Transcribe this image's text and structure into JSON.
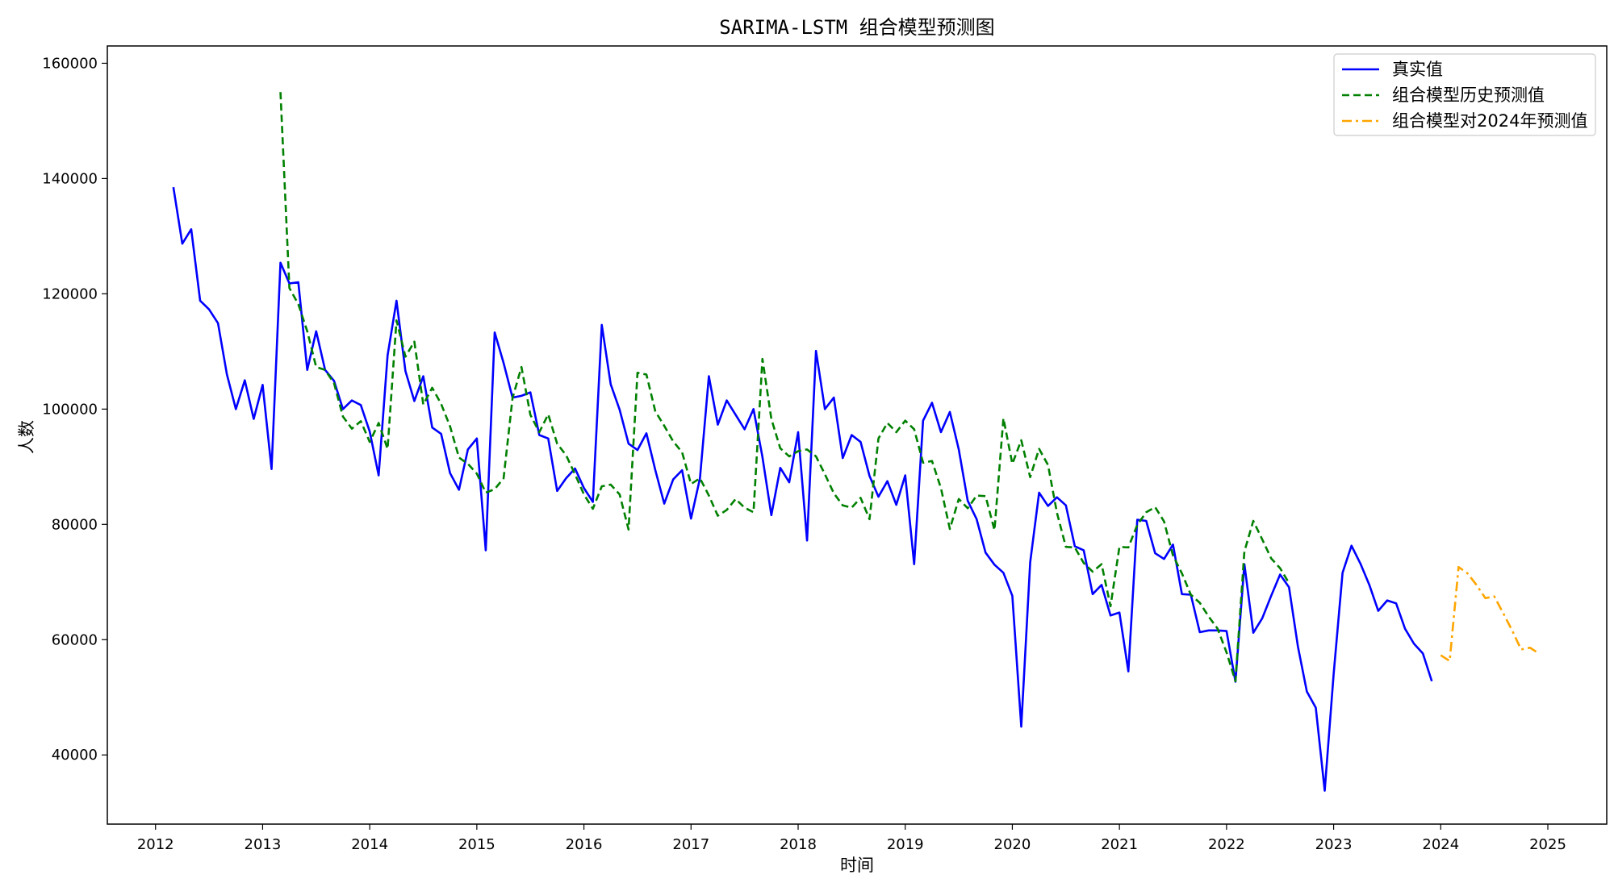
{
  "chart_data": {
    "type": "line",
    "title": "SARIMA-LSTM 组合模型预测图",
    "xlabel": "时间",
    "ylabel": "人数",
    "xlim": [
      2011.55,
      2025.55
    ],
    "ylim": [
      28000,
      163000
    ],
    "grid": false,
    "legend_position": "top-right",
    "x_ticks": [
      2012,
      2013,
      2014,
      2015,
      2016,
      2017,
      2018,
      2019,
      2020,
      2021,
      2022,
      2023,
      2024,
      2025
    ],
    "x_tick_labels": [
      "2012",
      "2013",
      "2014",
      "2015",
      "2016",
      "2017",
      "2018",
      "2019",
      "2020",
      "2021",
      "2022",
      "2023",
      "2024",
      "2025"
    ],
    "y_ticks": [
      40000,
      60000,
      80000,
      100000,
      120000,
      140000,
      160000
    ],
    "y_tick_labels": [
      "40000",
      "60000",
      "80000",
      "100000",
      "120000",
      "140000",
      "160000"
    ],
    "series": [
      {
        "name": "真实值",
        "color": "#0000ff",
        "dash": "solid",
        "x_start": "2012-03",
        "values": [
          138500,
          128700,
          131200,
          118800,
          117300,
          114900,
          106000,
          100000,
          105000,
          98300,
          104200,
          89600,
          125400,
          121800,
          122000,
          106800,
          113500,
          106800,
          104900,
          100000,
          101500,
          100700,
          96100,
          88500,
          109300,
          118800,
          106600,
          101400,
          105700,
          96800,
          95700,
          88900,
          86000,
          93000,
          94900,
          75500,
          113300,
          108000,
          102000,
          102300,
          102900,
          95500,
          94900,
          85800,
          88000,
          89700,
          86300,
          83900,
          114600,
          104300,
          99900,
          94000,
          92900,
          95800,
          89400,
          83600,
          87800,
          89400,
          81000,
          88000,
          105700,
          97300,
          101500,
          99000,
          96500,
          100000,
          91700,
          81600,
          89800,
          87300,
          96000,
          77200,
          110100,
          100000,
          102000,
          91500,
          95500,
          94300,
          88400,
          84800,
          87500,
          83400,
          88500,
          73100,
          98000,
          101100,
          96000,
          99500,
          93000,
          84100,
          80900,
          75100,
          73000,
          71600,
          67600,
          44900,
          73400,
          85500,
          83200,
          84700,
          83300,
          76200,
          75500,
          67900,
          69500,
          64200,
          64700,
          54500,
          80800,
          80600,
          75000,
          74000,
          76500,
          67900,
          67800,
          61300,
          61600,
          61600,
          61500,
          52700,
          73100,
          61200,
          63700,
          67600,
          71300,
          69100,
          58800,
          51000,
          48200,
          33800,
          54000,
          71600,
          76300,
          73200,
          69500,
          65000,
          66800,
          66300,
          61900,
          59300,
          57600,
          52800
        ]
      },
      {
        "name": "组合模型历史预测值",
        "color": "#008000",
        "dash": "dashed",
        "x_start": "2013-03",
        "values": [
          155000,
          121000,
          118200,
          113500,
          107300,
          106800,
          104500,
          98700,
          96600,
          97900,
          94300,
          97600,
          93100,
          115400,
          109100,
          111700,
          100800,
          103700,
          100900,
          97000,
          91600,
          90500,
          88800,
          85500,
          86100,
          88000,
          101900,
          107300,
          99000,
          96000,
          99100,
          94000,
          92000,
          88700,
          85200,
          82700,
          86600,
          86900,
          85200,
          79100,
          106300,
          106000,
          99600,
          97100,
          94400,
          92500,
          87000,
          88000,
          85000,
          81500,
          82500,
          84400,
          82900,
          82100,
          108700,
          98300,
          93200,
          91800,
          92700,
          93000,
          91800,
          88700,
          85400,
          83300,
          82900,
          84600,
          80900,
          94900,
          97600,
          96000,
          98000,
          96500,
          90700,
          91000,
          86300,
          79200,
          84400,
          82800,
          85000,
          84900,
          79000,
          98400,
          90500,
          94600,
          88200,
          93100,
          90300,
          82000,
          76100,
          76000,
          73300,
          71800,
          73100,
          65800,
          76100,
          76000,
          79900,
          82100,
          83000,
          80500,
          74600,
          71500,
          67800,
          66400,
          64000,
          61900,
          57800,
          52800,
          75300,
          80600,
          77400,
          74100,
          72400,
          69800
        ]
      },
      {
        "name": "组合模型对2024年预测值",
        "color": "#ffa500",
        "dash": "dashdot",
        "x_start": "2024-01",
        "values": [
          57300,
          56300,
          72600,
          71500,
          69500,
          67200,
          67500,
          64600,
          61600,
          58300,
          58600,
          57600
        ]
      }
    ]
  }
}
